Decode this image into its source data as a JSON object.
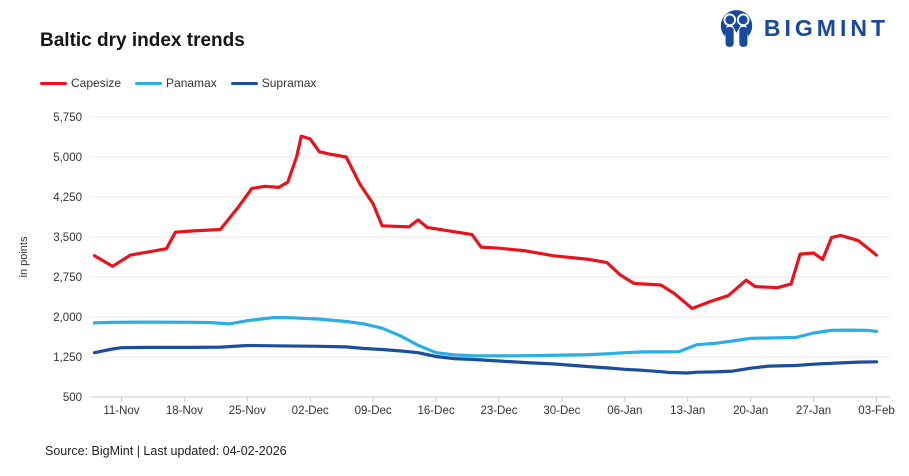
{
  "header": {
    "title": "Baltic dry index trends",
    "logo_text": "BIGMINT",
    "logo_color": "#17499f"
  },
  "legend": [
    {
      "label": "Capesize",
      "color": "#e8131b"
    },
    {
      "label": "Panamax",
      "color": "#29aee6"
    },
    {
      "label": "Supramax",
      "color": "#1b4f9e"
    }
  ],
  "footer": {
    "source_text": "Source: BigMint | Last updated: 04-02-2026"
  },
  "chart_data": {
    "type": "line",
    "title": "Baltic dry index trends",
    "xlabel": "",
    "ylabel": "in points",
    "ylim": [
      500,
      5750
    ],
    "y_ticks": [
      {
        "label": "5,750",
        "value": 5750
      },
      {
        "label": "5,000",
        "value": 5000
      },
      {
        "label": "4,250",
        "value": 4250
      },
      {
        "label": "3,500",
        "value": 3500
      },
      {
        "label": "2,750",
        "value": 2750
      },
      {
        "label": "2,000",
        "value": 2000
      },
      {
        "label": "1,250",
        "value": 1250
      },
      {
        "label": "500",
        "value": 500
      }
    ],
    "x_tick_labels": [
      "11-Nov",
      "18-Nov",
      "25-Nov",
      "02-Dec",
      "09-Dec",
      "16-Dec",
      "23-Dec",
      "30-Dec",
      "06-Jan",
      "13-Jan",
      "20-Jan",
      "27-Jan",
      "03-Feb"
    ],
    "x_unit": "days relative to 11-Nov (weekly ticks, 7 days apart)",
    "grid": "horizontal",
    "legend_position": "top-left",
    "series": [
      {
        "name": "Capesize",
        "color": "#e8131b",
        "points": [
          [
            -3,
            3150
          ],
          [
            -1,
            2950
          ],
          [
            1,
            3160
          ],
          [
            3,
            3220
          ],
          [
            5,
            3280
          ],
          [
            6,
            3590
          ],
          [
            8,
            3615
          ],
          [
            11,
            3640
          ],
          [
            13,
            4060
          ],
          [
            14.5,
            4410
          ],
          [
            16,
            4450
          ],
          [
            17.5,
            4430
          ],
          [
            18.5,
            4530
          ],
          [
            19.5,
            5010
          ],
          [
            20,
            5390
          ],
          [
            21,
            5340
          ],
          [
            22,
            5100
          ],
          [
            23,
            5060
          ],
          [
            25,
            5000
          ],
          [
            26.5,
            4500
          ],
          [
            28,
            4120
          ],
          [
            29,
            3710
          ],
          [
            32,
            3690
          ],
          [
            33,
            3820
          ],
          [
            34,
            3680
          ],
          [
            37,
            3600
          ],
          [
            39,
            3545
          ],
          [
            40,
            3310
          ],
          [
            42,
            3290
          ],
          [
            45,
            3240
          ],
          [
            48,
            3150
          ],
          [
            52,
            3080
          ],
          [
            54,
            3020
          ],
          [
            55.5,
            2790
          ],
          [
            57,
            2630
          ],
          [
            60,
            2600
          ],
          [
            61.5,
            2440
          ],
          [
            63.5,
            2160
          ],
          [
            65.5,
            2290
          ],
          [
            67.5,
            2400
          ],
          [
            69.5,
            2690
          ],
          [
            70.5,
            2570
          ],
          [
            73,
            2550
          ],
          [
            74.5,
            2620
          ],
          [
            75.5,
            3180
          ],
          [
            77,
            3200
          ],
          [
            78,
            3080
          ],
          [
            79,
            3490
          ],
          [
            80,
            3530
          ],
          [
            82,
            3430
          ],
          [
            84,
            3160
          ]
        ]
      },
      {
        "name": "Panamax",
        "color": "#29aee6",
        "points": [
          [
            -3,
            1890
          ],
          [
            -1,
            1900
          ],
          [
            3,
            1905
          ],
          [
            8,
            1900
          ],
          [
            10,
            1895
          ],
          [
            12,
            1870
          ],
          [
            14,
            1930
          ],
          [
            17,
            1990
          ],
          [
            19,
            1985
          ],
          [
            22,
            1960
          ],
          [
            25,
            1915
          ],
          [
            27,
            1870
          ],
          [
            29,
            1790
          ],
          [
            31,
            1650
          ],
          [
            33,
            1470
          ],
          [
            35,
            1330
          ],
          [
            37,
            1290
          ],
          [
            39,
            1275
          ],
          [
            42,
            1270
          ],
          [
            45,
            1275
          ],
          [
            49,
            1285
          ],
          [
            52,
            1295
          ],
          [
            54,
            1310
          ],
          [
            56,
            1330
          ],
          [
            58,
            1345
          ],
          [
            62,
            1350
          ],
          [
            64,
            1480
          ],
          [
            66,
            1505
          ],
          [
            68,
            1550
          ],
          [
            70,
            1600
          ],
          [
            73,
            1610
          ],
          [
            75,
            1615
          ],
          [
            77,
            1700
          ],
          [
            79,
            1750
          ],
          [
            81,
            1755
          ],
          [
            83,
            1750
          ],
          [
            84,
            1730
          ]
        ]
      },
      {
        "name": "Supramax",
        "color": "#1b4f9e",
        "points": [
          [
            -3,
            1330
          ],
          [
            -1,
            1400
          ],
          [
            0,
            1425
          ],
          [
            3,
            1430
          ],
          [
            8,
            1430
          ],
          [
            11,
            1435
          ],
          [
            14,
            1465
          ],
          [
            17,
            1460
          ],
          [
            22,
            1450
          ],
          [
            25,
            1440
          ],
          [
            27,
            1410
          ],
          [
            29,
            1390
          ],
          [
            31,
            1365
          ],
          [
            33,
            1330
          ],
          [
            35,
            1260
          ],
          [
            37,
            1220
          ],
          [
            39,
            1205
          ],
          [
            42,
            1175
          ],
          [
            45,
            1145
          ],
          [
            48,
            1120
          ],
          [
            52,
            1070
          ],
          [
            54,
            1045
          ],
          [
            56,
            1020
          ],
          [
            58,
            1000
          ],
          [
            60,
            975
          ],
          [
            61,
            960
          ],
          [
            63,
            950
          ],
          [
            64,
            965
          ],
          [
            66,
            970
          ],
          [
            68,
            985
          ],
          [
            70,
            1040
          ],
          [
            72,
            1080
          ],
          [
            75,
            1090
          ],
          [
            77,
            1115
          ],
          [
            80,
            1140
          ],
          [
            82,
            1155
          ],
          [
            84,
            1160
          ]
        ]
      }
    ]
  },
  "style": {
    "gridline_color": "#e7e7e7",
    "axis_line_color": "#c9c9c9",
    "axis_label_color": "#333333",
    "background": "#ffffff"
  }
}
